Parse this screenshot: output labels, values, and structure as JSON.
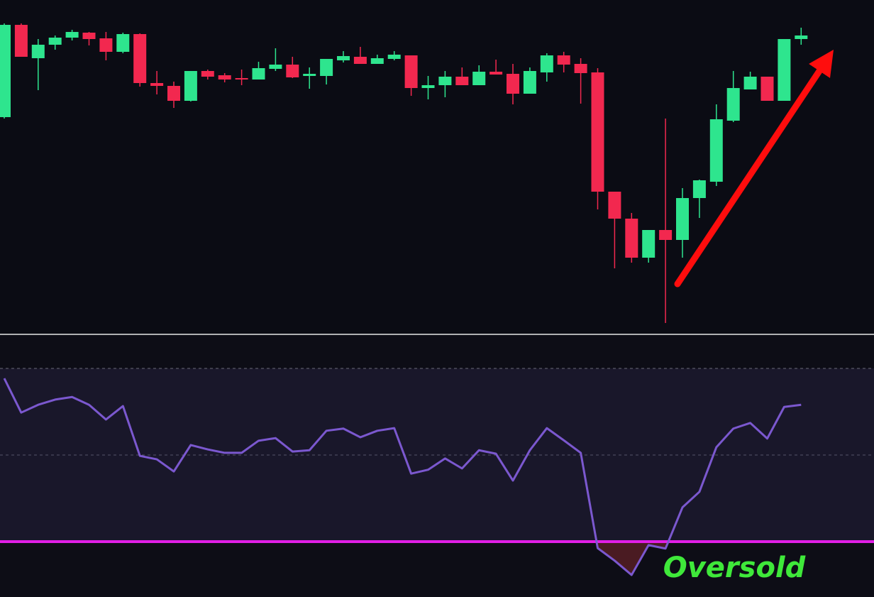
{
  "chart_data": [
    {
      "type": "candlestick",
      "up_color": "#2ee58e",
      "down_color": "#f2284f",
      "ylim": [
        50,
        97
      ],
      "series": {
        "open": [
          80.5,
          93.5,
          88.8,
          90.7,
          91.7,
          92.4,
          91.6,
          89.7,
          92.2,
          85.3,
          84.9,
          82.8,
          87,
          86.4,
          86,
          85.8,
          87.3,
          87.9,
          86.3,
          86.3,
          88.5,
          89,
          88,
          88.7,
          89.2,
          84.6,
          85,
          86.2,
          85,
          86.9,
          86.6,
          83.8,
          86.8,
          89.2,
          88,
          86.8,
          70,
          66.2,
          60.7,
          64.6,
          63.2,
          69.1,
          71.4,
          80,
          84.4,
          86.2,
          82.8,
          91.5
        ],
        "high": [
          93.7,
          93.7,
          91.5,
          92,
          92.8,
          92.5,
          92.5,
          92.4,
          92.3,
          87,
          85.5,
          87,
          87.2,
          86.7,
          87.2,
          88.3,
          90.2,
          89,
          87.5,
          88.7,
          89.8,
          90.4,
          89.3,
          89.8,
          89.2,
          86.3,
          87,
          87.5,
          87.8,
          88.6,
          88,
          87.5,
          89.5,
          89.7,
          88.8,
          87.4,
          70,
          67,
          64.6,
          80.3,
          70.5,
          71.7,
          82.3,
          87,
          86.9,
          86.2,
          91.5,
          93.1
        ],
        "low": [
          80.3,
          89,
          84.3,
          90,
          91.3,
          90.6,
          88.5,
          89.5,
          84.8,
          83.7,
          81.8,
          82.7,
          85.8,
          85.4,
          85,
          85.8,
          87,
          86,
          84.5,
          85.1,
          88.2,
          88,
          88,
          88.5,
          83.5,
          83,
          83.3,
          85,
          85,
          86.5,
          82.3,
          83.8,
          85.5,
          86.8,
          82.4,
          67.5,
          59.2,
          60,
          60,
          51.5,
          60.7,
          66.3,
          70.8,
          79.8,
          84.4,
          82.8,
          82.8,
          90.7
        ],
        "close": [
          93.5,
          89,
          90.7,
          91.7,
          92.5,
          91.5,
          89.7,
          92.2,
          85.3,
          84.9,
          82.8,
          87,
          86.2,
          85.8,
          85.9,
          87.4,
          87.9,
          86.1,
          86.6,
          88.7,
          89.1,
          88,
          88.8,
          89.3,
          84.6,
          85,
          86.2,
          85,
          86.9,
          86.5,
          83.8,
          87,
          89.2,
          87.9,
          86.7,
          70,
          66.2,
          60.7,
          64.6,
          63.2,
          69.1,
          71.6,
          80.2,
          84.6,
          86.2,
          82.8,
          91.5,
          92
        ]
      }
    },
    {
      "type": "line",
      "color": "#7b58cf",
      "ylim": [
        17.7,
        77.7
      ],
      "values": [
        67.7,
        59.8,
        61.6,
        62.8,
        63.4,
        61.6,
        58.2,
        61.3,
        49.8,
        49.0,
        46.2,
        52.3,
        51.3,
        50.5,
        50.5,
        53.3,
        53.9,
        50.8,
        51.1,
        55.6,
        56.1,
        54.1,
        55.6,
        56.2,
        45.7,
        46.6,
        49.2,
        46.9,
        51.1,
        50.3,
        44.1,
        51.1,
        56.2,
        53.4,
        50.5,
        28.5,
        25.6,
        22.3,
        29.2,
        28.4,
        37.9,
        41.5,
        51.8,
        56.1,
        57.4,
        53.8,
        61.1,
        61.6
      ],
      "upper_level": 70,
      "middle_level": 50,
      "lower_level": 30,
      "lower_level_color": "#e11ee6",
      "annotation": "Oversold"
    }
  ]
}
